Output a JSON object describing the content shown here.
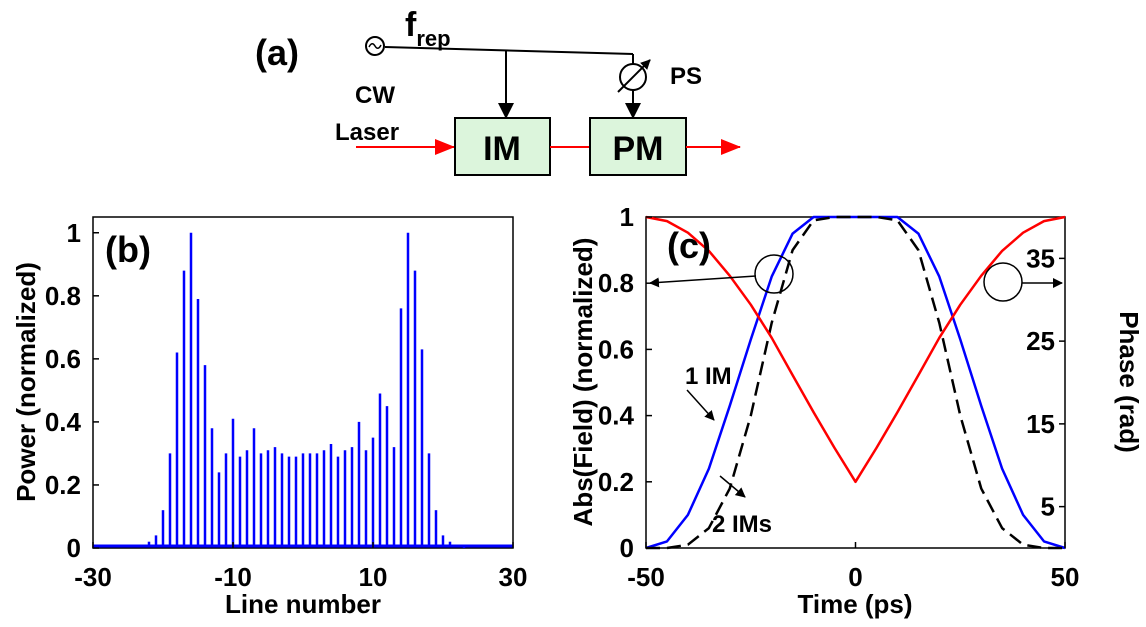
{
  "schematic": {
    "panel_label": "(a)",
    "source_label": "f",
    "source_sub": "rep",
    "cw_label": "CW",
    "laser_label": "Laser",
    "im_label": "IM",
    "pm_label": "PM",
    "ps_label": "PS"
  },
  "chart_data": [
    {
      "type": "bar",
      "panel_label": "(b)",
      "xlabel": "Line number",
      "ylabel": "Power (normalized)",
      "xlim": [
        -30,
        30
      ],
      "ylim": [
        0,
        1.05
      ],
      "xticks": [
        "-30",
        "-10",
        "10",
        "30"
      ],
      "xtick_values": [
        -30,
        -10,
        10,
        30
      ],
      "yticks": [
        "0",
        "0.2",
        "0.4",
        "0.6",
        "0.8",
        "1"
      ],
      "ytick_values": [
        0,
        0.2,
        0.4,
        0.6,
        0.8,
        1
      ],
      "color": "#0000ff",
      "categories": [
        -23,
        -22,
        -21,
        -20,
        -19,
        -18,
        -17,
        -16,
        -15,
        -14,
        -13,
        -12,
        -11,
        -10,
        -9,
        -8,
        -7,
        -6,
        -5,
        -4,
        -3,
        -2,
        -1,
        0,
        1,
        2,
        3,
        4,
        5,
        6,
        7,
        8,
        9,
        10,
        11,
        12,
        13,
        14,
        15,
        16,
        17,
        18,
        19,
        20,
        21,
        22,
        23
      ],
      "values": [
        0.01,
        0.02,
        0.04,
        0.12,
        0.3,
        0.62,
        0.88,
        1.0,
        0.79,
        0.58,
        0.38,
        0.24,
        0.3,
        0.41,
        0.29,
        0.31,
        0.38,
        0.3,
        0.31,
        0.32,
        0.3,
        0.29,
        0.29,
        0.3,
        0.3,
        0.3,
        0.31,
        0.33,
        0.29,
        0.31,
        0.32,
        0.4,
        0.31,
        0.35,
        0.49,
        0.45,
        0.32,
        0.76,
        1.0,
        0.88,
        0.63,
        0.3,
        0.12,
        0.04,
        0.02,
        0.01,
        0.0
      ]
    },
    {
      "type": "line",
      "panel_label": "(c)",
      "xlabel": "Time (ps)",
      "ylabel": "Abs(Field) (normalized)",
      "ylabel_right": "Phase (rad)",
      "xlim": [
        -50,
        50
      ],
      "ylim": [
        0,
        1
      ],
      "ylim_right": [
        0,
        40
      ],
      "xticks": [
        "-50",
        "0",
        "50"
      ],
      "xtick_values": [
        -50,
        0,
        50
      ],
      "yticks": [
        "0",
        "0.2",
        "0.4",
        "0.6",
        "0.8",
        "1"
      ],
      "ytick_values": [
        0,
        0.2,
        0.4,
        0.6,
        0.8,
        1
      ],
      "yticks_right": [
        "5",
        "15",
        "25",
        "35"
      ],
      "ytick_values_right": [
        5,
        15,
        25,
        35
      ],
      "annotations": [
        "1 IM",
        "2 IMs"
      ],
      "series": [
        {
          "color": "#0000ff",
          "style": "solid",
          "axis": "left",
          "x": [
            -50,
            -45,
            -40,
            -35,
            -30,
            -25,
            -20,
            -15,
            -10,
            -5,
            0,
            5,
            10,
            15,
            20,
            25,
            30,
            35,
            40,
            45,
            50
          ],
          "values": [
            0.0,
            0.02,
            0.1,
            0.24,
            0.43,
            0.63,
            0.82,
            0.95,
            1.0,
            1.0,
            1.0,
            1.0,
            1.0,
            0.95,
            0.82,
            0.63,
            0.43,
            0.24,
            0.1,
            0.02,
            0.0
          ]
        },
        {
          "color": "#000000",
          "style": "dashed",
          "axis": "left",
          "x": [
            -50,
            -45,
            -40,
            -35,
            -30,
            -25,
            -20,
            -15,
            -10,
            -5,
            0,
            5,
            10,
            15,
            20,
            25,
            30,
            35,
            40,
            45,
            50
          ],
          "values": [
            0.0,
            0.0,
            0.01,
            0.06,
            0.18,
            0.4,
            0.68,
            0.9,
            0.99,
            1.0,
            1.0,
            1.0,
            0.99,
            0.9,
            0.68,
            0.4,
            0.18,
            0.06,
            0.01,
            0.0,
            0.0
          ]
        },
        {
          "color": "#ff0000",
          "style": "solid",
          "axis": "right",
          "x": [
            -50,
            -45,
            -40,
            -35,
            -30,
            -25,
            -20,
            -15,
            -10,
            -5,
            0,
            5,
            10,
            15,
            20,
            25,
            30,
            35,
            40,
            45,
            50
          ],
          "values": [
            40,
            39.5,
            38.1,
            35.9,
            32.9,
            29.4,
            25.4,
            20.9,
            16.4,
            12.1,
            8.0,
            12.1,
            16.4,
            20.9,
            25.4,
            29.4,
            32.9,
            35.9,
            38.1,
            39.5,
            40
          ]
        }
      ]
    }
  ]
}
